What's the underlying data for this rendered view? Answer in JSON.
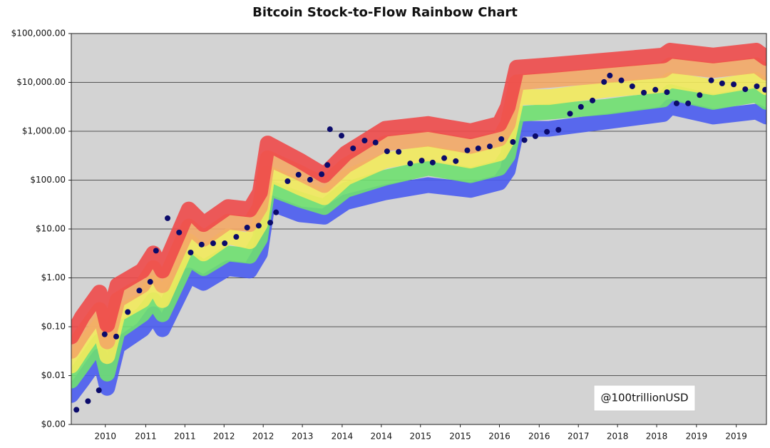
{
  "chart_data": {
    "type": "line",
    "title": "Bitcoin Stock-to-Flow Rainbow Chart",
    "annotation": "@100trillionUSD",
    "yscale": "log",
    "grid": true,
    "background": "#d3d3d3",
    "xlim": [
      2009.0,
      2019.83
    ],
    "ylim": [
      0.001,
      100000
    ],
    "yticks": [
      {
        "value": 0.001,
        "label": "$0.00"
      },
      {
        "value": 0.01,
        "label": "$0.01"
      },
      {
        "value": 0.1,
        "label": "$0.10"
      },
      {
        "value": 1,
        "label": "$1.00"
      },
      {
        "value": 10,
        "label": "$10.00"
      },
      {
        "value": 100,
        "label": "$100.00"
      },
      {
        "value": 1000,
        "label": "$1,000.00"
      },
      {
        "value": 10000,
        "label": "$10,000.00"
      },
      {
        "value": 100000,
        "label": "$100,000.00"
      }
    ],
    "xticks": [
      {
        "value": 2009.53,
        "label": "2010"
      },
      {
        "value": 2010.16,
        "label": "2011"
      },
      {
        "value": 2010.77,
        "label": "2011"
      },
      {
        "value": 2011.38,
        "label": "2012"
      },
      {
        "value": 2011.99,
        "label": "2012"
      },
      {
        "value": 2012.6,
        "label": "2013"
      },
      {
        "value": 2013.22,
        "label": "2014"
      },
      {
        "value": 2013.83,
        "label": "2014"
      },
      {
        "value": 2014.44,
        "label": "2015"
      },
      {
        "value": 2015.06,
        "label": "2015"
      },
      {
        "value": 2015.67,
        "label": "2016"
      },
      {
        "value": 2016.29,
        "label": "2016"
      },
      {
        "value": 2016.9,
        "label": "2017"
      },
      {
        "value": 2017.51,
        "label": "2018"
      },
      {
        "value": 2018.12,
        "label": "2018"
      },
      {
        "value": 2018.74,
        "label": "2019"
      },
      {
        "value": 2019.36,
        "label": "2019"
      }
    ],
    "x": [
      2009.0,
      2009.17,
      2009.44,
      2009.56,
      2009.72,
      2010.11,
      2010.28,
      2010.42,
      2010.83,
      2011.06,
      2011.44,
      2011.78,
      2011.94,
      2012.06,
      2012.56,
      2012.94,
      2013.28,
      2013.89,
      2014.56,
      2015.22,
      2015.67,
      2015.8,
      2015.94,
      2016.44,
      2017.33,
      2018.22,
      2018.33,
      2019.0,
      2019.67,
      2019.83
    ],
    "series": [
      {
        "color": "#4a5cf0",
        "values": [
          0.004,
          0.0079,
          0.025,
          0.0056,
          0.04,
          0.089,
          0.18,
          0.089,
          1.12,
          0.79,
          1.58,
          1.41,
          3.16,
          35.5,
          20,
          17.8,
          35.5,
          56.2,
          79.4,
          63.1,
          89.1,
          158,
          1120,
          1120,
          1580,
          2240,
          3160,
          2000,
          2510,
          2000
        ]
      },
      {
        "color": "#6fe070",
        "values": [
          0.0079,
          0.016,
          0.05,
          0.011,
          0.079,
          0.18,
          0.35,
          0.18,
          2.51,
          1.58,
          3.16,
          2.82,
          6.31,
          70.8,
          39.8,
          28.2,
          63.1,
          112,
          178,
          126,
          178,
          316,
          2240,
          2510,
          3160,
          4470,
          6310,
          3980,
          5620,
          3980
        ]
      },
      {
        "color": "#f2ea5c",
        "values": [
          0.016,
          0.035,
          0.11,
          0.025,
          0.18,
          0.35,
          0.79,
          0.35,
          5.62,
          3.16,
          7.08,
          5.62,
          12.6,
          141,
          70.8,
          44.7,
          112,
          251,
          355,
          251,
          355,
          708,
          5010,
          5010,
          7080,
          8910,
          11200,
          7940,
          11200,
          7940
        ]
      },
      {
        "color": "#f3a866",
        "values": [
          0.032,
          0.071,
          0.22,
          0.05,
          0.35,
          0.71,
          1.58,
          0.71,
          11.2,
          6.31,
          14.1,
          12.6,
          28.2,
          282,
          141,
          79.4,
          200,
          562,
          708,
          501,
          708,
          1410,
          10000,
          11200,
          14100,
          17800,
          22400,
          17800,
          22400,
          15800
        ]
      },
      {
        "color": "#ee4a4a",
        "values": [
          0.063,
          0.16,
          0.5,
          0.11,
          0.71,
          1.41,
          3.16,
          1.41,
          25.1,
          12.6,
          28.2,
          25.1,
          56.2,
          562,
          251,
          126,
          355,
          1120,
          1410,
          1000,
          1410,
          3160,
          20000,
          22400,
          28200,
          35500,
          44700,
          35500,
          44700,
          31600
        ]
      }
    ],
    "scatter": {
      "color": "#0b0b6b",
      "x": [
        2009.08,
        2009.26,
        2009.43,
        2009.52,
        2009.7,
        2009.88,
        2010.06,
        2010.23,
        2010.32,
        2010.5,
        2010.68,
        2010.86,
        2011.03,
        2011.21,
        2011.39,
        2011.57,
        2011.74,
        2011.92,
        2012.1,
        2012.19,
        2012.37,
        2012.54,
        2012.72,
        2012.9,
        2012.99,
        2013.03,
        2013.21,
        2013.39,
        2013.57,
        2013.74,
        2013.92,
        2014.1,
        2014.28,
        2014.46,
        2014.63,
        2014.81,
        2014.99,
        2015.17,
        2015.34,
        2015.52,
        2015.7,
        2015.88,
        2016.06,
        2016.23,
        2016.41,
        2016.59,
        2016.77,
        2016.94,
        2017.12,
        2017.3,
        2017.39,
        2017.57,
        2017.74,
        2017.92,
        2018.1,
        2018.28,
        2018.43,
        2018.61,
        2018.79,
        2018.97,
        2019.14,
        2019.32,
        2019.5,
        2019.68,
        2019.81
      ],
      "values": [
        0.002,
        0.003,
        0.005,
        0.07,
        0.063,
        0.2,
        0.55,
        0.83,
        3.6,
        16.6,
        8.5,
        3.3,
        4.8,
        5.1,
        5.1,
        6.9,
        10.7,
        11.7,
        13.5,
        21.9,
        95,
        129,
        102,
        132,
        204,
        1100,
        813,
        447,
        646,
        589,
        389,
        380,
        219,
        251,
        229,
        282,
        245,
        407,
        447,
        490,
        692,
        603,
        661,
        794,
        977,
        1070,
        2290,
        3160,
        4270,
        10200,
        13800,
        11000,
        8320,
        6170,
        7080,
        6310,
        3720,
        3720,
        5500,
        11000,
        9550,
        9120,
        7240,
        8320,
        7080
      ]
    }
  }
}
